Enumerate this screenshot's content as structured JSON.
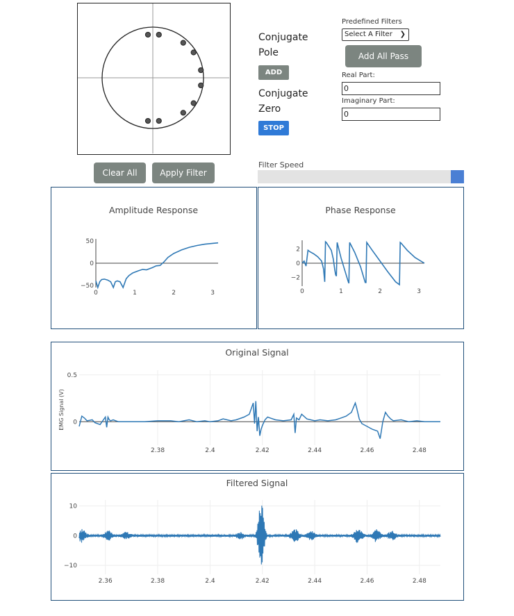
{
  "zplane": {
    "poles_zeros": [
      {
        "re": -0.08,
        "im": 0.85
      },
      {
        "re": 0.1,
        "im": 0.85
      },
      {
        "re": 0.5,
        "im": 0.69
      },
      {
        "re": 0.67,
        "im": 0.5
      },
      {
        "re": 0.79,
        "im": 0.15
      },
      {
        "re": 0.79,
        "im": -0.15
      },
      {
        "re": 0.67,
        "im": -0.5
      },
      {
        "re": 0.5,
        "im": -0.69
      },
      {
        "re": 0.1,
        "im": -0.85
      },
      {
        "re": -0.08,
        "im": -0.85
      }
    ]
  },
  "buttons": {
    "clear_all": "Clear All",
    "apply_filter": "Apply Filter",
    "add": "ADD",
    "stop": "STOP",
    "add_all_pass": "Add All Pass"
  },
  "labels": {
    "conjugate_pole": "Conjugate Pole",
    "conjugate_zero": "Conjugate Zero",
    "predefined_filters": "Predefined Filters",
    "real_part": "Real Part:",
    "imaginary_part": "Imaginary Part:",
    "filter_speed": "Filter Speed"
  },
  "inputs": {
    "filter_select": "Select A Filter",
    "real_value": "0",
    "imag_value": "0"
  },
  "speed_slider": {
    "value": 1.0
  },
  "colors": {
    "line": "#2e78b5",
    "button_grey": "#7c8580",
    "stop_blue": "#2f7ad7",
    "panel_border": "#1f4e79",
    "slider_thumb": "#4a7fd4"
  },
  "chart_data": [
    {
      "type": "line",
      "title": "Amplitude Response",
      "xlim": [
        0,
        3.14
      ],
      "ylim": [
        -55,
        55
      ],
      "xticks": [
        "0",
        "1",
        "2",
        "3"
      ],
      "yticks": [
        "50",
        "0",
        "−50"
      ],
      "series": [
        {
          "x": [
            0,
            0.05,
            0.1,
            0.15,
            0.22,
            0.3,
            0.38,
            0.45,
            0.5,
            0.55,
            0.62,
            0.7,
            0.78,
            0.85,
            0.95,
            1.1,
            1.2,
            1.3,
            1.45,
            1.55,
            1.65,
            1.75,
            1.85,
            2.0,
            2.2,
            2.4,
            2.6,
            2.8,
            3.0,
            3.14
          ],
          "y": [
            -40,
            -55,
            -42,
            -37,
            -36,
            -38,
            -42,
            -55,
            -42,
            -40,
            -42,
            -55,
            -35,
            -28,
            -22,
            -17,
            -14,
            -15,
            -10,
            -6,
            -5,
            3,
            13,
            22,
            30,
            36,
            40,
            43,
            45,
            46
          ]
        }
      ]
    },
    {
      "type": "line",
      "title": "Phase Response",
      "xlim": [
        0,
        3.14
      ],
      "ylim": [
        -3.2,
        3.2
      ],
      "xticks": [
        "0",
        "1",
        "2",
        "3"
      ],
      "yticks": [
        "2",
        "0",
        "−2"
      ],
      "series": [
        {
          "x": [
            0,
            0.05,
            0.1,
            0.15,
            0.2,
            0.3,
            0.4,
            0.5,
            0.55,
            0.58,
            0.6,
            0.62,
            0.68,
            0.75,
            0.8,
            0.84,
            0.86,
            0.88,
            0.9,
            1.0,
            1.1,
            1.18,
            1.2,
            1.22,
            1.35,
            1.5,
            1.62,
            1.64,
            1.66,
            1.8,
            2.0,
            2.2,
            2.4,
            2.5,
            2.52,
            2.54,
            2.7,
            2.9,
            3.14
          ],
          "y": [
            0,
            0.3,
            -0.4,
            1.8,
            1.6,
            1.3,
            0.9,
            0.3,
            -0.8,
            -2.6,
            3.0,
            2.9,
            2.4,
            1.8,
            0.6,
            -1.0,
            -1.6,
            -1.8,
            2.9,
            0.7,
            -1.1,
            -2.5,
            -2.8,
            2.9,
            1.5,
            -0.5,
            -2.7,
            -2.7,
            2.9,
            1.8,
            0.3,
            -1.2,
            -2.6,
            -3.0,
            2.9,
            2.8,
            1.8,
            0.8,
            0
          ]
        }
      ]
    },
    {
      "type": "line",
      "title": "Original Signal",
      "ylabel": "EMG Signal (V)",
      "xlim": [
        2.35,
        2.488
      ],
      "ylim": [
        -0.25,
        0.55
      ],
      "xticks": [
        "2.38",
        "2.4",
        "2.42",
        "2.44",
        "2.46",
        "2.48"
      ],
      "yticks": [
        "0.5",
        "0"
      ],
      "series": [
        {
          "x": [
            2.35,
            2.351,
            2.352,
            2.353,
            2.355,
            2.356,
            2.358,
            2.36,
            2.3605,
            2.361,
            2.3615,
            2.362,
            2.363,
            2.365,
            2.37,
            2.375,
            2.38,
            2.385,
            2.388,
            2.39,
            2.392,
            2.395,
            2.398,
            2.4,
            2.403,
            2.405,
            2.408,
            2.41,
            2.413,
            2.415,
            2.4165,
            2.417,
            2.4175,
            2.418,
            2.4185,
            2.419,
            2.4195,
            2.42,
            2.421,
            2.422,
            2.423,
            2.425,
            2.428,
            2.431,
            2.432,
            2.4325,
            2.433,
            2.434,
            2.435,
            2.437,
            2.44,
            2.442,
            2.445,
            2.448,
            2.45,
            2.452,
            2.454,
            2.4555,
            2.456,
            2.457,
            2.458,
            2.46,
            2.462,
            2.464,
            2.465,
            2.466,
            2.467,
            2.468,
            2.469,
            2.47,
            2.473,
            2.476,
            2.479,
            2.482,
            2.485,
            2.488
          ],
          "y": [
            -0.05,
            0.06,
            0.04,
            0.01,
            0.02,
            -0.01,
            -0.03,
            0.05,
            -0.06,
            0.05,
            0.02,
            0.01,
            0.02,
            0.0,
            0.0,
            0.0,
            0.01,
            0.01,
            0.0,
            0.01,
            0.02,
            0.0,
            0.01,
            0.0,
            0.01,
            0.03,
            0.01,
            0.02,
            0.05,
            0.08,
            0.2,
            -0.02,
            0.22,
            -0.1,
            0.05,
            -0.15,
            -0.08,
            -0.04,
            0.02,
            0.05,
            0.04,
            0.02,
            0.01,
            0.02,
            0.08,
            -0.12,
            0.04,
            0.02,
            0.08,
            0.03,
            0.01,
            0.02,
            0.01,
            0.02,
            0.04,
            0.06,
            0.1,
            0.2,
            0.15,
            0.03,
            -0.02,
            -0.05,
            -0.08,
            -0.1,
            -0.18,
            0.0,
            0.1,
            0.06,
            0.03,
            0.01,
            0.02,
            0.0,
            0.01,
            0.0,
            0.0,
            0.0
          ]
        }
      ]
    },
    {
      "type": "line",
      "title": "Filtered Signal",
      "xlim": [
        2.35,
        2.488
      ],
      "ylim": [
        -13,
        12
      ],
      "xticks": [
        "2.36",
        "2.38",
        "2.4",
        "2.42",
        "2.44",
        "2.46",
        "2.48"
      ],
      "yticks": [
        "10",
        "0",
        "−10"
      ],
      "bursts": [
        {
          "x": 2.351,
          "amp": 2.2
        },
        {
          "x": 2.361,
          "amp": 1.6
        },
        {
          "x": 2.368,
          "amp": 1.0
        },
        {
          "x": 2.4115,
          "amp": 1.0
        },
        {
          "x": 2.4195,
          "amp": 11.5
        },
        {
          "x": 2.4325,
          "amp": 2.2
        },
        {
          "x": 2.4385,
          "amp": 1.3
        },
        {
          "x": 2.4565,
          "amp": 2.4
        },
        {
          "x": 2.4635,
          "amp": 1.9
        },
        {
          "x": 2.4695,
          "amp": 1.4
        }
      ],
      "noise_amp": 0.35
    }
  ]
}
